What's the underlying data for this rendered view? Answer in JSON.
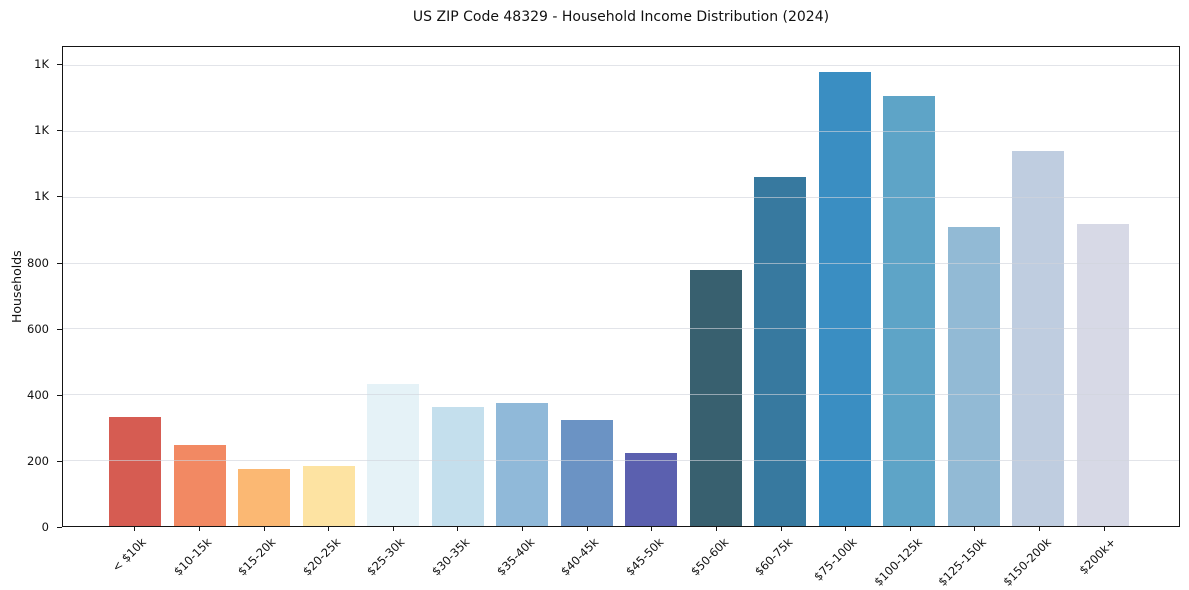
{
  "title": "US ZIP Code 48329 - Household Income Distribution (2024)",
  "chart_data": {
    "type": "bar",
    "title": "US ZIP Code 48329 - Household Income Distribution (2024)",
    "xlabel": "",
    "ylabel": "Households",
    "categories": [
      "< $10k",
      "$10-15k",
      "$15-20k",
      "$20-25k",
      "$25-30k",
      "$30-35k",
      "$35-40k",
      "$40-45k",
      "$45-50k",
      "$50-60k",
      "$60-75k",
      "$75-100k",
      "$100-125k",
      "$125-150k",
      "$150-200k",
      "$200k+"
    ],
    "values": [
      330,
      245,
      172,
      181,
      432,
      363,
      373,
      321,
      222,
      778,
      1061,
      1380,
      1305,
      908,
      1140,
      918
    ],
    "bar_colors": [
      "#d65c52",
      "#f28963",
      "#fbb873",
      "#fde3a2",
      "#e5f2f7",
      "#c4dfed",
      "#90b9d9",
      "#6b93c4",
      "#5b60af",
      "#38606f",
      "#37799f",
      "#3a8ec2",
      "#5ea4c7",
      "#92bad5",
      "#bfcde0",
      "#d7d9e6"
    ],
    "ylim": [
      0,
      1455
    ],
    "yticks": {
      "values": [
        0,
        200,
        400,
        600,
        800,
        1000,
        1200,
        1400
      ],
      "labels": [
        "0",
        "200",
        "400",
        "600",
        "800",
        "1K",
        "1K",
        "1K"
      ]
    },
    "grid": "horizontal",
    "legend": "none",
    "axis_color": "#151515",
    "grid_color": "#e4e7ec",
    "background_color": "#ffffff"
  }
}
